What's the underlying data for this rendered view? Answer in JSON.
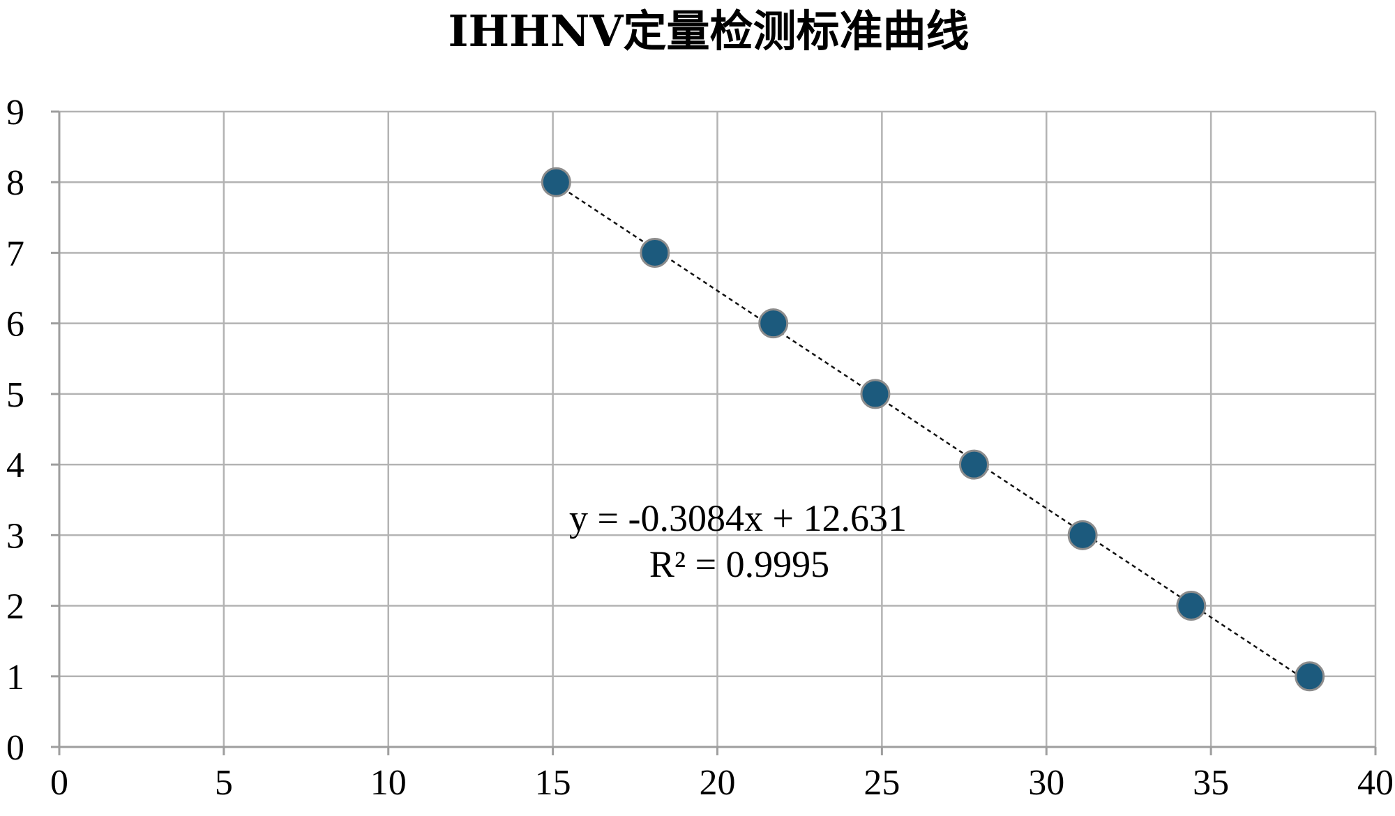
{
  "chart_data": {
    "type": "scatter",
    "title": "IHHNV定量检测标准曲线",
    "xlabel": "",
    "ylabel": "",
    "xlim": [
      0,
      40
    ],
    "ylim": [
      0,
      9
    ],
    "x_ticks": [
      0,
      5,
      10,
      15,
      20,
      25,
      30,
      35,
      40
    ],
    "y_ticks": [
      0,
      1,
      2,
      3,
      4,
      5,
      6,
      7,
      8,
      9
    ],
    "grid": true,
    "legend": "none",
    "points": [
      {
        "x": 15.1,
        "y": 8
      },
      {
        "x": 18.1,
        "y": 7
      },
      {
        "x": 21.7,
        "y": 6
      },
      {
        "x": 24.8,
        "y": 5
      },
      {
        "x": 27.8,
        "y": 4
      },
      {
        "x": 31.1,
        "y": 3
      },
      {
        "x": 34.4,
        "y": 2
      },
      {
        "x": 38.0,
        "y": 1
      }
    ],
    "trendline": {
      "type": "linear",
      "slope": -0.3084,
      "intercept": 12.631,
      "style": "dashed",
      "equation_label": "y = -0.3084x + 12.631",
      "r2_label": "R² = 0.9995"
    },
    "colors": {
      "marker_fill": "#1c5a7d",
      "marker_edge": "#8c8c8c",
      "trendline": "#111111",
      "grid": "#b3b3b3"
    }
  }
}
